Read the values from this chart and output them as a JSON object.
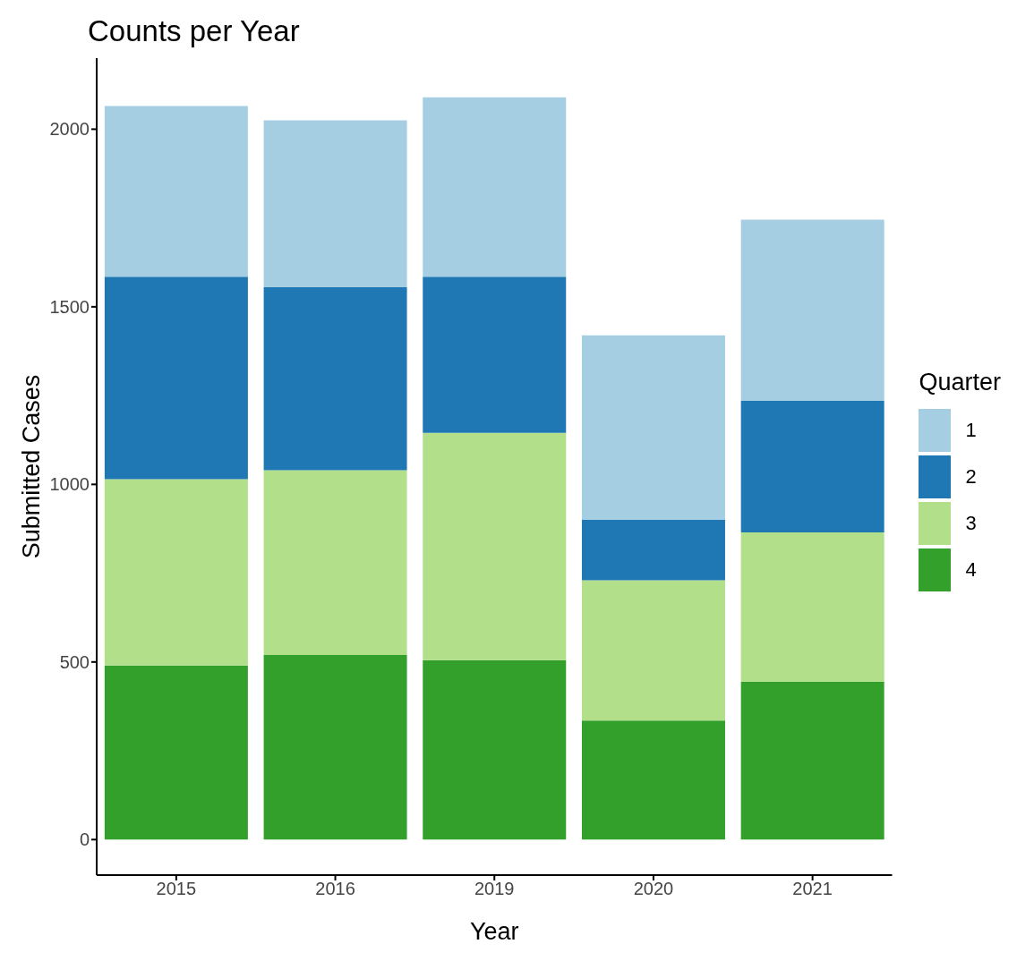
{
  "chart_data": {
    "type": "bar",
    "title": "Counts per Year",
    "xlabel": "Year",
    "ylabel": "Submitted Cases",
    "legend_title": "Quarter",
    "categories": [
      "2015",
      "2016",
      "2019",
      "2020",
      "2021"
    ],
    "stacked": true,
    "series": [
      {
        "name": "4",
        "color": "#33a02c",
        "values": [
          490,
          520,
          505,
          335,
          445
        ]
      },
      {
        "name": "3",
        "color": "#b2df8a",
        "values": [
          525,
          520,
          640,
          395,
          420
        ]
      },
      {
        "name": "2",
        "color": "#1f78b4",
        "values": [
          570,
          515,
          440,
          170,
          370
        ]
      },
      {
        "name": "1",
        "color": "#a6cee3",
        "values": [
          480,
          470,
          505,
          520,
          510
        ]
      }
    ],
    "ylim": [
      -100,
      2200
    ],
    "yticks": [
      0,
      500,
      1000,
      1500,
      2000
    ],
    "grid": false,
    "legend": "right"
  }
}
